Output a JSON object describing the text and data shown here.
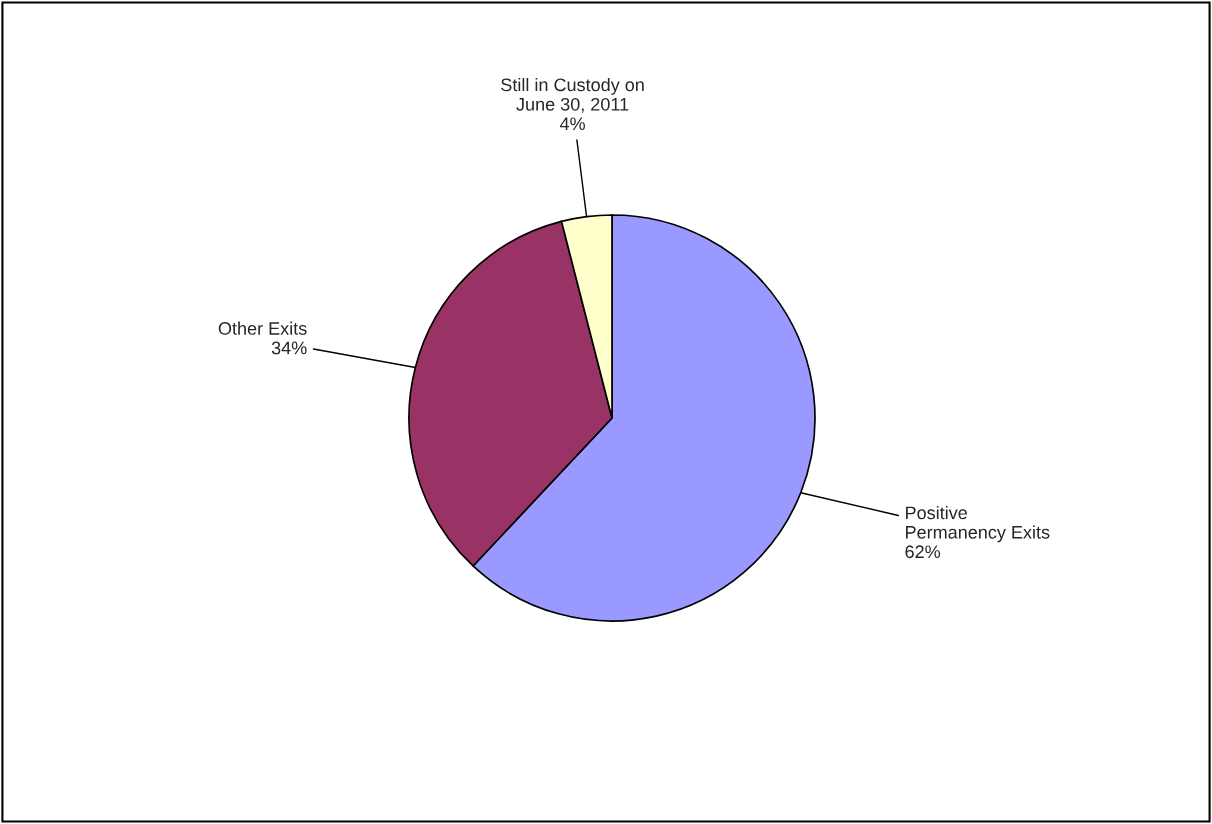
{
  "chart_data": {
    "type": "pie",
    "categories": [
      "Positive\nPermanency Exits",
      "Other Exits",
      "Still in Custody on\nJune 30, 2011"
    ],
    "values": [
      62,
      34,
      4
    ],
    "value_labels": [
      "62%",
      "34%",
      "4%"
    ],
    "colors": [
      "#9999ff",
      "#993366",
      "#ffffcc"
    ],
    "legend": false
  }
}
